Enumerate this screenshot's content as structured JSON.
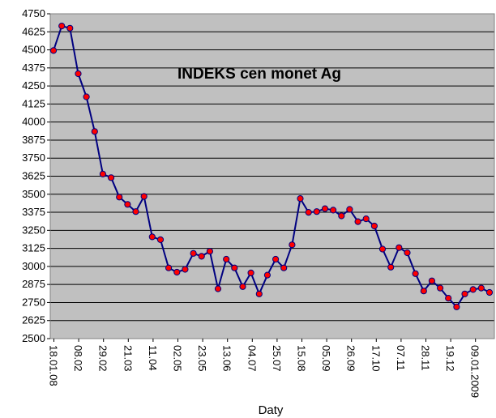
{
  "chart_data": {
    "type": "line",
    "title": "INDEKS cen monet Ag",
    "xlabel": "Daty",
    "ylabel": "",
    "ylim": [
      2500,
      4750
    ],
    "y_ticks": [
      2500,
      2625,
      2750,
      2875,
      3000,
      3125,
      3250,
      3375,
      3500,
      3625,
      3750,
      3875,
      4000,
      4125,
      4250,
      4375,
      4500,
      4625,
      4750
    ],
    "x_tick_labels": [
      "18.01.08",
      "08.02",
      "29.02",
      "21.03",
      "11.04",
      "02.05",
      "23.05",
      "13.06",
      "04.07",
      "25.07",
      "15.08",
      "05.09",
      "26.09",
      "17.10",
      "07.11",
      "28.11",
      "19.12",
      "09.01.2009"
    ],
    "grid": true,
    "legend": "none",
    "colors": {
      "plot_bg": "#c0c0c0",
      "line": "#000080",
      "marker": "#ff0000",
      "marker_edge": "#000080",
      "grid": "#000000"
    },
    "series": [
      {
        "values": [
          4495,
          4665,
          4650,
          4335,
          4175,
          3935,
          3640,
          3615,
          3480,
          3430,
          3380,
          3485,
          3205,
          3185,
          2990,
          2960,
          2980,
          3090,
          3070,
          3105,
          2845,
          3050,
          2990,
          2860,
          2955,
          2810,
          2940,
          3050,
          2990,
          3150,
          3470,
          3375,
          3380,
          3400,
          3390,
          3350,
          3395,
          3310,
          3330,
          3280,
          3120,
          2995,
          3130,
          3095,
          2950,
          2830,
          2900,
          2850,
          2780,
          2720,
          2810,
          2840,
          2850,
          2820
        ]
      }
    ]
  }
}
